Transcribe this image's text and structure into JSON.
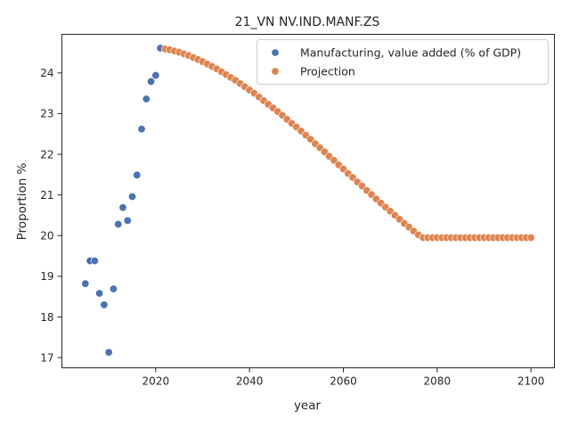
{
  "chart_data": {
    "type": "scatter",
    "title": "21_VN NV.IND.MANF.ZS",
    "xlabel": "year",
    "ylabel": "Proportion %",
    "xlim": [
      2000,
      2105
    ],
    "ylim": [
      16.75,
      24.95
    ],
    "xticks": [
      2020,
      2040,
      2060,
      2080,
      2100
    ],
    "yticks": [
      17,
      18,
      19,
      20,
      21,
      22,
      23,
      24
    ],
    "grid": false,
    "legend_position": "top-right",
    "series": [
      {
        "name": "Manufacturing, value added (% of GDP)",
        "color": "#4c72b0",
        "x": [
          2005,
          2006,
          2007,
          2008,
          2009,
          2010,
          2011,
          2012,
          2013,
          2014,
          2015,
          2016,
          2017,
          2018,
          2019,
          2020,
          2021
        ],
        "y": [
          18.82,
          19.38,
          19.38,
          18.58,
          18.3,
          17.13,
          18.69,
          20.28,
          20.69,
          20.37,
          20.96,
          21.49,
          22.62,
          23.36,
          23.79,
          23.94,
          24.61
        ]
      },
      {
        "name": "Projection",
        "color": "#dd8452",
        "x": [
          2022,
          2023,
          2024,
          2025,
          2026,
          2027,
          2028,
          2029,
          2030,
          2031,
          2032,
          2033,
          2034,
          2035,
          2036,
          2037,
          2038,
          2039,
          2040,
          2041,
          2042,
          2043,
          2044,
          2045,
          2046,
          2047,
          2048,
          2049,
          2050,
          2051,
          2052,
          2053,
          2054,
          2055,
          2056,
          2057,
          2058,
          2059,
          2060,
          2061,
          2062,
          2063,
          2064,
          2065,
          2066,
          2067,
          2068,
          2069,
          2070,
          2071,
          2072,
          2073,
          2074,
          2075,
          2076,
          2077,
          2078,
          2079,
          2080,
          2081,
          2082,
          2083,
          2084,
          2085,
          2086,
          2087,
          2088,
          2089,
          2090,
          2091,
          2092,
          2093,
          2094,
          2095,
          2096,
          2097,
          2098,
          2099,
          2100
        ],
        "y": [
          24.59,
          24.57,
          24.54,
          24.51,
          24.47,
          24.43,
          24.38,
          24.33,
          24.28,
          24.22,
          24.16,
          24.1,
          24.03,
          23.96,
          23.89,
          23.82,
          23.74,
          23.66,
          23.58,
          23.5,
          23.41,
          23.32,
          23.23,
          23.14,
          23.05,
          22.96,
          22.86,
          22.76,
          22.67,
          22.57,
          22.47,
          22.37,
          22.26,
          22.16,
          22.06,
          21.95,
          21.85,
          21.74,
          21.64,
          21.53,
          21.43,
          21.32,
          21.22,
          21.11,
          21.01,
          20.9,
          20.8,
          20.7,
          20.6,
          20.5,
          20.4,
          20.3,
          20.21,
          20.11,
          20.02,
          19.95,
          19.95,
          19.95,
          19.95,
          19.95,
          19.95,
          19.95,
          19.95,
          19.95,
          19.95,
          19.95,
          19.95,
          19.95,
          19.95,
          19.95,
          19.95,
          19.95,
          19.95,
          19.95,
          19.95,
          19.95,
          19.95,
          19.95,
          19.95
        ]
      }
    ]
  }
}
